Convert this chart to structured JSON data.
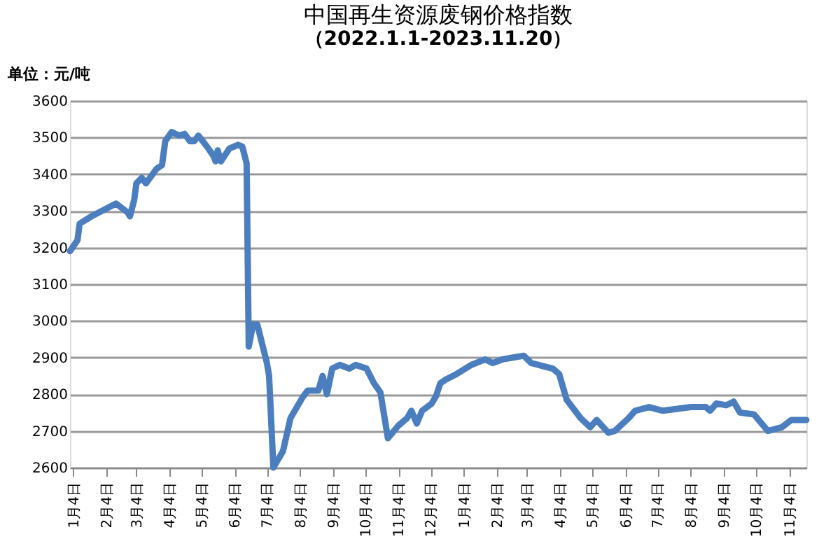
{
  "chart_data": {
    "type": "line",
    "title": "中国再生资源废钢价格指数",
    "subtitle": "（2022.1.1-2023.11.20）",
    "ylabel": "单位：元/吨",
    "x": [
      "2022-01-01",
      "2022-01-08",
      "2022-01-10",
      "2022-01-21",
      "2022-02-10",
      "2022-02-13",
      "2022-02-24",
      "2022-02-26",
      "2022-03-02",
      "2022-03-04",
      "2022-03-09",
      "2022-03-13",
      "2022-03-23",
      "2022-03-28",
      "2022-03-31",
      "2022-04-06",
      "2022-04-13",
      "2022-04-18",
      "2022-04-23",
      "2022-04-27",
      "2022-05-01",
      "2022-05-09",
      "2022-05-15",
      "2022-05-17",
      "2022-05-19",
      "2022-05-22",
      "2022-05-30",
      "2022-06-07",
      "2022-06-11",
      "2022-06-15",
      "2022-06-17",
      "2022-06-21",
      "2022-06-25",
      "2022-07-04",
      "2022-07-06",
      "2022-07-10",
      "2022-07-19",
      "2022-07-26",
      "2022-07-30",
      "2022-08-06",
      "2022-08-11",
      "2022-08-21",
      "2022-08-25",
      "2022-08-29",
      "2022-09-03",
      "2022-09-10",
      "2022-09-19",
      "2022-09-25",
      "2022-10-05",
      "2022-10-12",
      "2022-10-18",
      "2022-10-25",
      "2022-11-04",
      "2022-11-12",
      "2022-11-16",
      "2022-11-21",
      "2022-11-26",
      "2022-12-05",
      "2022-12-09",
      "2022-12-13",
      "2022-12-18",
      "2022-12-28",
      "2023-01-11",
      "2023-01-24",
      "2023-01-31",
      "2023-02-09",
      "2023-02-19",
      "2023-03-01",
      "2023-03-08",
      "2023-03-21",
      "2023-03-28",
      "2023-04-03",
      "2023-04-10",
      "2023-04-23",
      "2023-05-02",
      "2023-05-08",
      "2023-05-19",
      "2023-05-25",
      "2023-06-07",
      "2023-06-13",
      "2023-06-26",
      "2023-07-09",
      "2023-08-04",
      "2023-08-18",
      "2023-08-22",
      "2023-08-28",
      "2023-09-06",
      "2023-09-13",
      "2023-09-19",
      "2023-10-02",
      "2023-10-15",
      "2023-10-28",
      "2023-11-06",
      "2023-11-20"
    ],
    "series": [
      {
        "color": "#4a7ebf",
        "values": [
          3190,
          3220,
          3265,
          3285,
          3315,
          3320,
          3295,
          3285,
          3330,
          3375,
          3390,
          3375,
          3415,
          3425,
          3490,
          3515,
          3505,
          3510,
          3490,
          3490,
          3505,
          3475,
          3450,
          3435,
          3465,
          3435,
          3470,
          3480,
          3475,
          3430,
          2930,
          2990,
          2990,
          2885,
          2850,
          2600,
          2645,
          2735,
          2755,
          2790,
          2810,
          2810,
          2850,
          2800,
          2870,
          2880,
          2870,
          2880,
          2870,
          2830,
          2805,
          2680,
          2715,
          2735,
          2755,
          2720,
          2755,
          2775,
          2795,
          2830,
          2840,
          2855,
          2880,
          2895,
          2885,
          2895,
          2900,
          2905,
          2885,
          2875,
          2870,
          2855,
          2785,
          2735,
          2710,
          2730,
          2695,
          2700,
          2735,
          2755,
          2765,
          2755,
          2765,
          2765,
          2755,
          2775,
          2770,
          2780,
          2750,
          2745,
          2700,
          2710,
          2730,
          2730
        ]
      }
    ],
    "xlim": [
      "2022-01-01",
      "2023-11-20"
    ],
    "xticks": [
      {
        "value": "2022-01-04",
        "label": "1月4日"
      },
      {
        "value": "2022-02-04",
        "label": "2月4日"
      },
      {
        "value": "2022-03-04",
        "label": "3月4日"
      },
      {
        "value": "2022-04-04",
        "label": "4月4日"
      },
      {
        "value": "2022-05-04",
        "label": "5月4日"
      },
      {
        "value": "2022-06-04",
        "label": "6月4日"
      },
      {
        "value": "2022-07-04",
        "label": "7月4日"
      },
      {
        "value": "2022-08-04",
        "label": "8月4日"
      },
      {
        "value": "2022-09-04",
        "label": "9月4日"
      },
      {
        "value": "2022-10-04",
        "label": "10月4日"
      },
      {
        "value": "2022-11-04",
        "label": "11月4日"
      },
      {
        "value": "2022-12-04",
        "label": "12月4日"
      },
      {
        "value": "2023-01-04",
        "label": "1月4日"
      },
      {
        "value": "2023-02-04",
        "label": "2月4日"
      },
      {
        "value": "2023-03-04",
        "label": "3月4日"
      },
      {
        "value": "2023-04-04",
        "label": "4月4日"
      },
      {
        "value": "2023-05-04",
        "label": "5月4日"
      },
      {
        "value": "2023-06-04",
        "label": "6月4日"
      },
      {
        "value": "2023-07-04",
        "label": "7月4日"
      },
      {
        "value": "2023-08-04",
        "label": "8月4日"
      },
      {
        "value": "2023-09-04",
        "label": "9月4日"
      },
      {
        "value": "2023-10-04",
        "label": "10月4日"
      },
      {
        "value": "2023-11-04",
        "label": "11月4日"
      }
    ],
    "ylim": [
      2600,
      3600
    ],
    "yticks": [
      2600,
      2700,
      2800,
      2900,
      3000,
      3100,
      3200,
      3300,
      3400,
      3500,
      3600
    ],
    "grid": "y",
    "legend": false,
    "marker": "none",
    "line_style": "solid"
  }
}
